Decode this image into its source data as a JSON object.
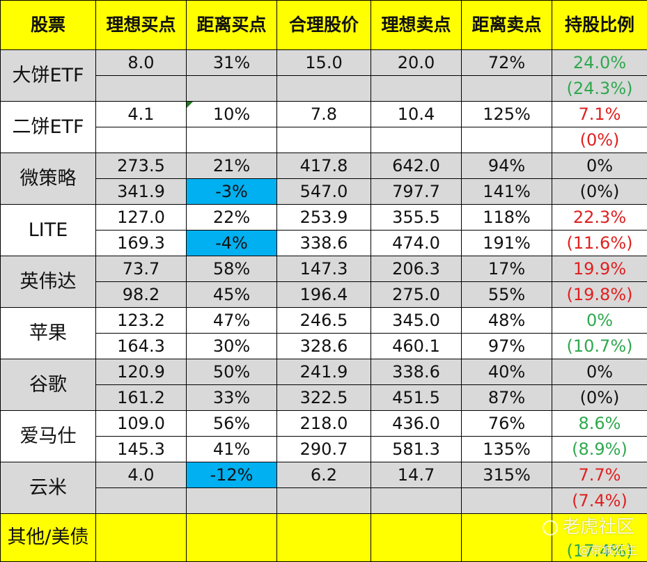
{
  "headers": [
    "股票",
    "理想买点",
    "距离买点",
    "合理股价",
    "理想卖点",
    "距离卖点",
    "持股比例"
  ],
  "stocks": [
    {
      "name": "大饼ETF",
      "rows": [
        {
          "buy": "8.0",
          "dist_buy": "31%",
          "fair": "15.0",
          "sell": "20.0",
          "dist_sell": "72%",
          "hold": "24.0%"
        },
        {
          "buy": "",
          "dist_buy": "",
          "fair": "",
          "sell": "",
          "dist_sell": "",
          "hold": "(24.3%)"
        }
      ]
    },
    {
      "name": "二饼ETF",
      "rows": [
        {
          "buy": "4.1",
          "dist_buy": "10%",
          "fair": "7.8",
          "sell": "10.4",
          "dist_sell": "125%",
          "hold": "7.1%"
        },
        {
          "buy": "",
          "dist_buy": "",
          "fair": "",
          "sell": "",
          "dist_sell": "",
          "hold": "(0%)"
        }
      ]
    },
    {
      "name": "微策略",
      "rows": [
        {
          "buy": "273.5",
          "dist_buy": "21%",
          "fair": "417.8",
          "sell": "642.0",
          "dist_sell": "94%",
          "hold": "0%"
        },
        {
          "buy": "341.9",
          "dist_buy": "-3%",
          "fair": "547.0",
          "sell": "797.7",
          "dist_sell": "141%",
          "hold": "(0%)"
        }
      ]
    },
    {
      "name": "LITE",
      "rows": [
        {
          "buy": "127.0",
          "dist_buy": "22%",
          "fair": "253.9",
          "sell": "355.5",
          "dist_sell": "118%",
          "hold": "22.3%"
        },
        {
          "buy": "169.3",
          "dist_buy": "-4%",
          "fair": "338.6",
          "sell": "474.0",
          "dist_sell": "191%",
          "hold": "(11.6%)"
        }
      ]
    },
    {
      "name": "英伟达",
      "rows": [
        {
          "buy": "73.7",
          "dist_buy": "58%",
          "fair": "147.3",
          "sell": "206.3",
          "dist_sell": "17%",
          "hold": "19.9%"
        },
        {
          "buy": "98.2",
          "dist_buy": "45%",
          "fair": "196.4",
          "sell": "275.0",
          "dist_sell": "55%",
          "hold": "(19.8%)"
        }
      ]
    },
    {
      "name": "苹果",
      "rows": [
        {
          "buy": "123.2",
          "dist_buy": "47%",
          "fair": "246.5",
          "sell": "345.0",
          "dist_sell": "48%",
          "hold": "0%"
        },
        {
          "buy": "164.3",
          "dist_buy": "30%",
          "fair": "328.6",
          "sell": "460.1",
          "dist_sell": "97%",
          "hold": "(10.7%)"
        }
      ]
    },
    {
      "name": "谷歌",
      "rows": [
        {
          "buy": "120.9",
          "dist_buy": "50%",
          "fair": "241.9",
          "sell": "338.6",
          "dist_sell": "40%",
          "hold": "0%"
        },
        {
          "buy": "161.2",
          "dist_buy": "33%",
          "fair": "322.5",
          "sell": "451.5",
          "dist_sell": "87%",
          "hold": "(0%)"
        }
      ]
    },
    {
      "name": "爱马仕",
      "rows": [
        {
          "buy": "109.0",
          "dist_buy": "56%",
          "fair": "218.0",
          "sell": "436.0",
          "dist_sell": "76%",
          "hold": "8.6%"
        },
        {
          "buy": "145.3",
          "dist_buy": "41%",
          "fair": "290.7",
          "sell": "581.3",
          "dist_sell": "135%",
          "hold": "(8.9%)"
        }
      ]
    },
    {
      "name": "云米",
      "rows": [
        {
          "buy": "4.0",
          "dist_buy": "-12%",
          "fair": "6.2",
          "sell": "14.7",
          "dist_sell": "315%",
          "hold": "7.7%"
        },
        {
          "buy": "",
          "dist_buy": "",
          "fair": "",
          "sell": "",
          "dist_sell": "",
          "hold": "(7.4%)"
        }
      ]
    }
  ],
  "footer": {
    "name": "其他/美债",
    "hold": "(17.4%)"
  },
  "watermark": {
    "main": "老虎社区",
    "sub": "@京城狂生"
  },
  "colors": {
    "header_bg": "#ffff00",
    "gray_row": "#d9d9d9",
    "highlight": "#00b0f0",
    "positive": "#2fa84f",
    "negative": "#e02020"
  }
}
